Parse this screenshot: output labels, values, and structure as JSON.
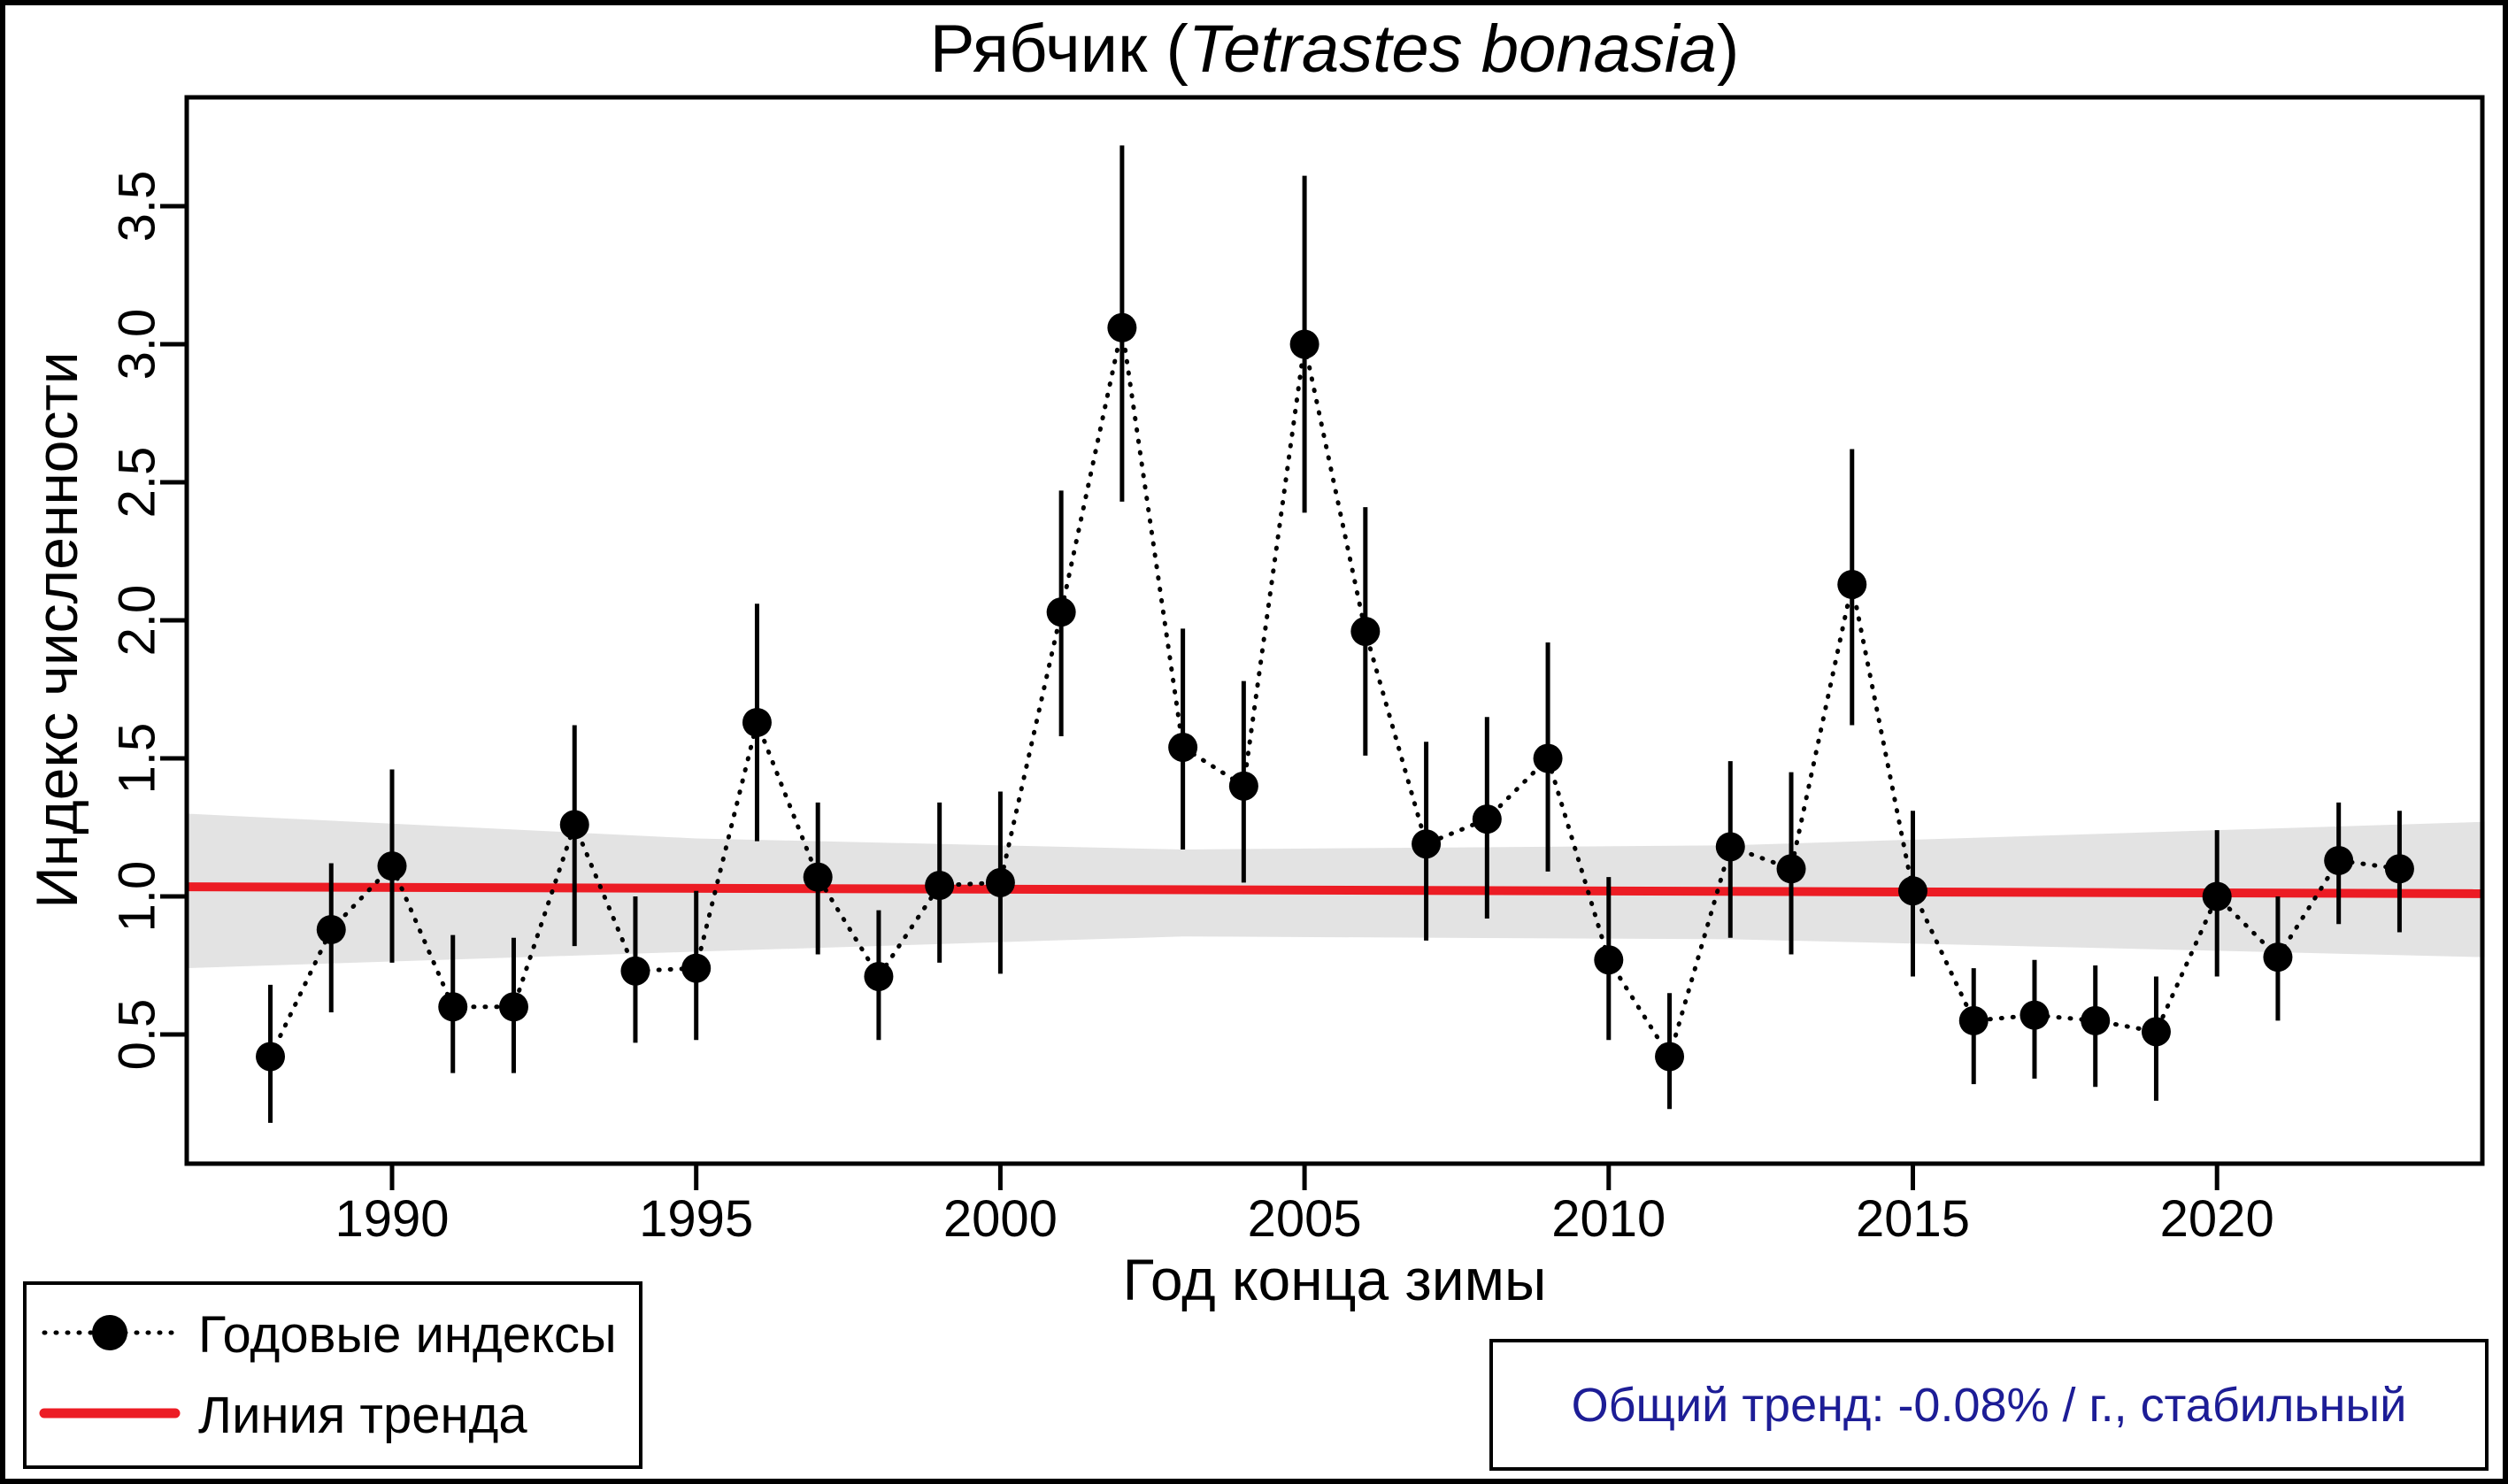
{
  "title": {
    "prefix": "Рябчик (",
    "italic": "Tetrastes bonasia",
    "suffix": ")"
  },
  "axes": {
    "y_label": "Индекс численности",
    "x_label": "Год конца зимы",
    "x_ticks": [
      "1990",
      "1995",
      "2000",
      "2005",
      "2010",
      "2015",
      "2020"
    ],
    "y_ticks": [
      "0.5",
      "1.0",
      "1.5",
      "2.0",
      "2.5",
      "3.0",
      "3.5"
    ]
  },
  "legend": {
    "items": [
      {
        "label": "Годовые индексы",
        "marker": "dotted-line-with-point-icon"
      },
      {
        "label": "Линия тренда",
        "marker": "red-line-icon"
      }
    ]
  },
  "trend_box": {
    "text": "Общий тренд: -0.08% / г., стабильный"
  },
  "colors": {
    "accent_red": "#EC1C24",
    "navy_text": "#1D1D96",
    "band_gray": "#E3E3E3",
    "black": "#000000"
  },
  "chart_data": {
    "type": "line",
    "title": "Рябчик (Tetrastes bonasia)",
    "xlabel": "Год конца зимы",
    "ylabel": "Индекс численности",
    "x_range_years": [
      1986.6,
      2024.4
    ],
    "ylim": [
      0.03,
      3.89
    ],
    "grid": false,
    "legend_position": "bottom-left-outside",
    "series_name": "Годовые индексы",
    "points": [
      {
        "year": 1988,
        "value": 0.42,
        "lo": 0.18,
        "hi": 0.68
      },
      {
        "year": 1989,
        "value": 0.88,
        "lo": 0.58,
        "hi": 1.12
      },
      {
        "year": 1990,
        "value": 1.11,
        "lo": 0.76,
        "hi": 1.46
      },
      {
        "year": 1991,
        "value": 0.6,
        "lo": 0.36,
        "hi": 0.86
      },
      {
        "year": 1992,
        "value": 0.6,
        "lo": 0.36,
        "hi": 0.85
      },
      {
        "year": 1993,
        "value": 1.26,
        "lo": 0.82,
        "hi": 1.62
      },
      {
        "year": 1994,
        "value": 0.73,
        "lo": 0.47,
        "hi": 1.0
      },
      {
        "year": 1995,
        "value": 0.74,
        "lo": 0.48,
        "hi": 1.02
      },
      {
        "year": 1996,
        "value": 1.63,
        "lo": 1.2,
        "hi": 2.06
      },
      {
        "year": 1997,
        "value": 1.07,
        "lo": 0.79,
        "hi": 1.34
      },
      {
        "year": 1998,
        "value": 0.71,
        "lo": 0.48,
        "hi": 0.95
      },
      {
        "year": 1999,
        "value": 1.04,
        "lo": 0.76,
        "hi": 1.34
      },
      {
        "year": 2000,
        "value": 1.05,
        "lo": 0.72,
        "hi": 1.38
      },
      {
        "year": 2001,
        "value": 2.03,
        "lo": 1.58,
        "hi": 2.47
      },
      {
        "year": 2002,
        "value": 3.06,
        "lo": 2.43,
        "hi": 3.72
      },
      {
        "year": 2003,
        "value": 1.54,
        "lo": 1.17,
        "hi": 1.97
      },
      {
        "year": 2004,
        "value": 1.4,
        "lo": 1.05,
        "hi": 1.78
      },
      {
        "year": 2005,
        "value": 3.0,
        "lo": 2.39,
        "hi": 3.61
      },
      {
        "year": 2006,
        "value": 1.96,
        "lo": 1.51,
        "hi": 2.41
      },
      {
        "year": 2007,
        "value": 1.19,
        "lo": 0.84,
        "hi": 1.56
      },
      {
        "year": 2008,
        "value": 1.28,
        "lo": 0.92,
        "hi": 1.65
      },
      {
        "year": 2009,
        "value": 1.5,
        "lo": 1.09,
        "hi": 1.92
      },
      {
        "year": 2010,
        "value": 0.77,
        "lo": 0.48,
        "hi": 1.07
      },
      {
        "year": 2011,
        "value": 0.42,
        "lo": 0.23,
        "hi": 0.65
      },
      {
        "year": 2012,
        "value": 1.18,
        "lo": 0.85,
        "hi": 1.49
      },
      {
        "year": 2013,
        "value": 1.1,
        "lo": 0.79,
        "hi": 1.45
      },
      {
        "year": 2014,
        "value": 2.13,
        "lo": 1.62,
        "hi": 2.62
      },
      {
        "year": 2015,
        "value": 1.02,
        "lo": 0.71,
        "hi": 1.31
      },
      {
        "year": 2016,
        "value": 0.55,
        "lo": 0.32,
        "hi": 0.74
      },
      {
        "year": 2017,
        "value": 0.57,
        "lo": 0.34,
        "hi": 0.77
      },
      {
        "year": 2018,
        "value": 0.55,
        "lo": 0.31,
        "hi": 0.75
      },
      {
        "year": 2019,
        "value": 0.51,
        "lo": 0.26,
        "hi": 0.71
      },
      {
        "year": 2020,
        "value": 1.0,
        "lo": 0.71,
        "hi": 1.24
      },
      {
        "year": 2021,
        "value": 0.78,
        "lo": 0.55,
        "hi": 1.0
      },
      {
        "year": 2022,
        "value": 1.13,
        "lo": 0.9,
        "hi": 1.34
      },
      {
        "year": 2023,
        "value": 1.1,
        "lo": 0.87,
        "hi": 1.31
      }
    ],
    "trend_line": {
      "name": "Линия тренда",
      "value_start": 1.035,
      "value_end": 1.01,
      "annotation": "Общий тренд: -0.08% / г., стабильный"
    },
    "confidence_band": [
      {
        "x": 1986.6,
        "top": 1.3,
        "bottom": 0.74
      },
      {
        "x": 1995,
        "top": 1.21,
        "bottom": 0.8
      },
      {
        "x": 2003,
        "top": 1.17,
        "bottom": 0.855
      },
      {
        "x": 2012,
        "top": 1.185,
        "bottom": 0.845
      },
      {
        "x": 2024.4,
        "top": 1.27,
        "bottom": 0.78
      }
    ]
  }
}
